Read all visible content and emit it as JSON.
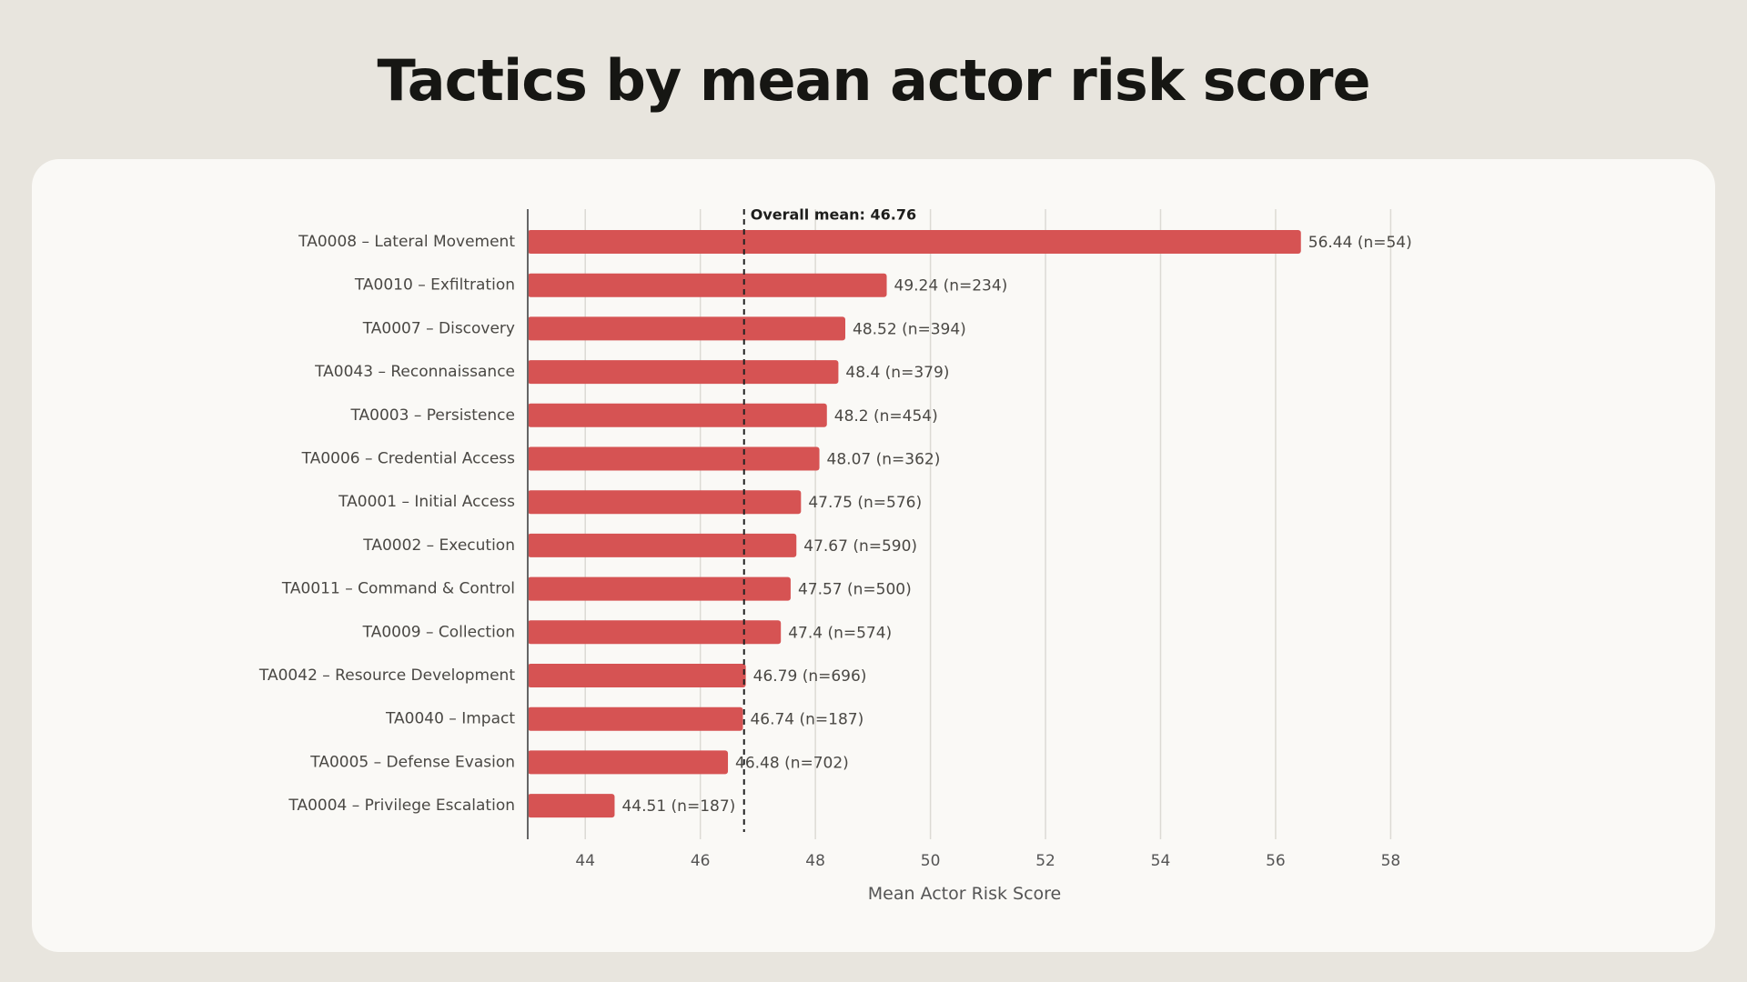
{
  "title": "Tactics by mean actor risk score",
  "chart_data": {
    "type": "bar",
    "orientation": "horizontal",
    "categories": [
      "TA0008 – Lateral Movement",
      "TA0010 – Exfiltration",
      "TA0007 – Discovery",
      "TA0043 – Reconnaissance",
      "TA0003 – Persistence",
      "TA0006 – Credential Access",
      "TA0001 – Initial Access",
      "TA0002 – Execution",
      "TA0011 – Command & Control",
      "TA0009 – Collection",
      "TA0042 – Resource Development",
      "TA0040 – Impact",
      "TA0005 – Defense Evasion",
      "TA0004 – Privilege Escalation"
    ],
    "values": [
      56.44,
      49.24,
      48.52,
      48.4,
      48.2,
      48.07,
      47.75,
      47.67,
      47.57,
      47.4,
      46.79,
      46.74,
      46.48,
      44.51
    ],
    "counts": [
      54,
      234,
      394,
      379,
      454,
      362,
      576,
      590,
      500,
      574,
      696,
      187,
      702,
      187
    ],
    "data_labels": [
      "56.44 (n=54)",
      "49.24 (n=234)",
      "48.52 (n=394)",
      "48.4 (n=379)",
      "48.2 (n=454)",
      "48.07 (n=362)",
      "47.75 (n=576)",
      "47.67 (n=590)",
      "47.57 (n=500)",
      "47.4 (n=574)",
      "46.79 (n=696)",
      "46.74 (n=187)",
      "46.48 (n=702)",
      "44.51 (n=187)"
    ],
    "xlabel": "Mean Actor Risk Score",
    "ylabel": "",
    "xlim": [
      43,
      58.5
    ],
    "xticks": [
      44,
      46,
      48,
      50,
      52,
      54,
      56,
      58
    ],
    "reference_line": {
      "value": 46.76,
      "label": "Overall mean: 46.76",
      "style": "dashed"
    },
    "grid": "vertical",
    "bar_color": "#d65353",
    "title": "Tactics by mean actor risk score"
  }
}
